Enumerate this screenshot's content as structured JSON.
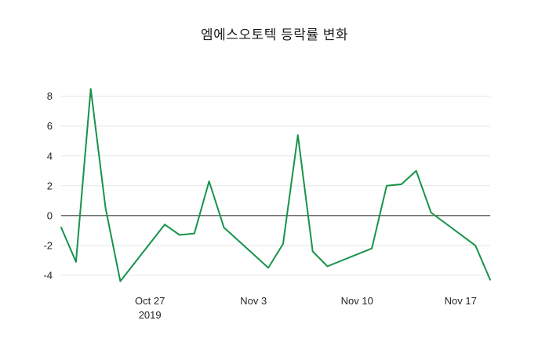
{
  "chart_data": {
    "type": "line",
    "title": "엠에스오토텍 등락률 변화",
    "xlabel": "",
    "ylabel": "",
    "grid": "horizontal",
    "zero_line": true,
    "legend": "none",
    "colors": {
      "line": "#17934b",
      "grid": "#e6e6e6",
      "zero_line": "#3d3d3d",
      "text": "#262626",
      "background": "#ffffff"
    },
    "x_axis": {
      "range": [
        "2019-10-21",
        "2019-11-19"
      ],
      "ticks": [
        {
          "label": "Oct 27",
          "sublabel": "2019",
          "date": "2019-10-27"
        },
        {
          "label": "Nov 3",
          "sublabel": "",
          "date": "2019-11-03"
        },
        {
          "label": "Nov 10",
          "sublabel": "",
          "date": "2019-11-10"
        },
        {
          "label": "Nov 17",
          "sublabel": "",
          "date": "2019-11-17"
        }
      ]
    },
    "y_axis": {
      "range": [
        -4.9,
        9.3
      ],
      "ticks": [
        -4,
        -2,
        0,
        2,
        4,
        6,
        8
      ]
    },
    "series": [
      {
        "name": "등락률",
        "color": "#17934b",
        "x": [
          "2019-10-21",
          "2019-10-22",
          "2019-10-23",
          "2019-10-24",
          "2019-10-25",
          "2019-10-28",
          "2019-10-29",
          "2019-10-30",
          "2019-10-31",
          "2019-11-01",
          "2019-11-04",
          "2019-11-05",
          "2019-11-06",
          "2019-11-07",
          "2019-11-08",
          "2019-11-11",
          "2019-11-12",
          "2019-11-13",
          "2019-11-14",
          "2019-11-15",
          "2019-11-18",
          "2019-11-19"
        ],
        "y": [
          -0.8,
          -3.1,
          8.5,
          0.5,
          -4.4,
          -0.6,
          -1.3,
          -1.2,
          2.3,
          -0.8,
          -3.5,
          -1.9,
          5.4,
          -2.4,
          -3.4,
          -2.2,
          2.0,
          2.1,
          3.0,
          0.2,
          -2.0,
          -4.3
        ]
      }
    ]
  }
}
